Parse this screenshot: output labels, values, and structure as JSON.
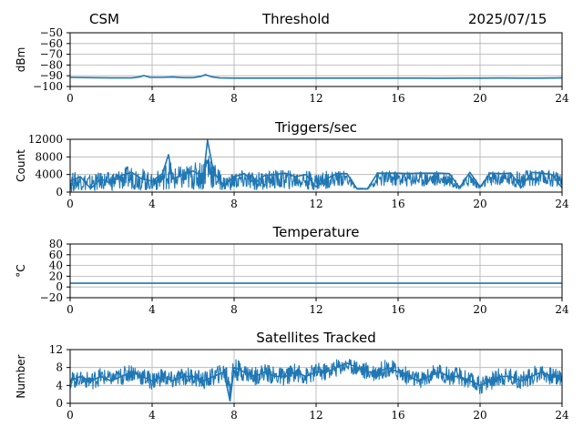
{
  "header": {
    "left": "CSM",
    "center": "Threshold",
    "right": "2025/07/15"
  },
  "colors": {
    "line": "#1f77b4",
    "grid": "#b0b0b0",
    "axis": "#000000"
  },
  "chart_data": [
    {
      "type": "line",
      "title": "",
      "ylabel": "dBm",
      "xlim": [
        0,
        24
      ],
      "ylim": [
        -100,
        -50
      ],
      "xticks": [
        0,
        4,
        8,
        12,
        16,
        20,
        24
      ],
      "yticks": [
        -100,
        -90,
        -80,
        -70,
        -60,
        -50
      ],
      "ytick_labels": [
        "−100",
        "−90",
        "−80",
        "−70",
        "−60",
        "−50"
      ],
      "grid": true,
      "x": [
        0,
        1,
        2,
        3,
        3.4,
        3.6,
        3.9,
        4.5,
        5,
        5.5,
        6,
        6.4,
        6.6,
        6.9,
        7.3,
        8,
        9,
        10,
        11,
        12,
        13,
        14,
        15,
        16,
        17,
        18,
        19,
        20,
        21,
        22,
        23,
        24
      ],
      "values": [
        -91.5,
        -91.8,
        -92.0,
        -92.0,
        -91.0,
        -89.8,
        -91.5,
        -91.5,
        -91.2,
        -91.8,
        -91.8,
        -90.5,
        -89.0,
        -91.0,
        -92.0,
        -92.2,
        -92.2,
        -92.2,
        -92.2,
        -92.2,
        -92.2,
        -92.2,
        -92.2,
        -92.2,
        -92.2,
        -92.3,
        -92.2,
        -92.2,
        -92.1,
        -92.2,
        -92.2,
        -92.0
      ]
    },
    {
      "type": "line",
      "title": "Triggers/sec",
      "ylabel": "Count",
      "xlim": [
        0,
        24
      ],
      "ylim": [
        0,
        12000
      ],
      "xticks": [
        0,
        4,
        8,
        12,
        16,
        20,
        24
      ],
      "yticks": [
        0,
        4000,
        8000,
        12000
      ],
      "ytick_labels": [
        "0",
        "4000",
        "8000",
        "12000"
      ],
      "grid": true,
      "x": [
        0,
        0.5,
        1,
        1.5,
        2,
        2.5,
        3,
        3.5,
        4,
        4.5,
        4.8,
        5,
        5.5,
        6,
        6.5,
        6.7,
        7,
        7.5,
        8,
        8.5,
        9,
        9.5,
        10,
        10.5,
        11,
        11.5,
        12,
        12.5,
        13,
        13.5,
        14,
        14.5,
        15,
        15.5,
        16,
        16.5,
        17,
        17.5,
        18,
        18.5,
        19,
        19.5,
        20,
        20.5,
        21,
        21.5,
        22,
        22.5,
        23,
        23.5,
        24
      ],
      "values": [
        2500,
        3500,
        800,
        3000,
        2000,
        3800,
        4500,
        3000,
        2500,
        4200,
        8500,
        3000,
        4000,
        4800,
        3500,
        11800,
        4500,
        1500,
        3500,
        4200,
        2000,
        3800,
        4000,
        4300,
        3500,
        4000,
        1200,
        3000,
        4200,
        4200,
        700,
        700,
        4300,
        4300,
        4300,
        4200,
        4300,
        4300,
        4300,
        4200,
        1000,
        4500,
        1200,
        4300,
        4200,
        4300,
        1000,
        4500,
        4300,
        4000,
        1000
      ],
      "range_low": [
        0,
        500,
        0,
        600,
        300,
        500,
        700,
        400,
        300,
        500,
        800,
        300,
        400,
        500,
        400,
        1000,
        600,
        400,
        500,
        600,
        400,
        600,
        700,
        700,
        700,
        700,
        400,
        800,
        1400,
        1400,
        700,
        700,
        1300,
        1300,
        1300,
        1300,
        1300,
        1300,
        1300,
        1300,
        700,
        1300,
        700,
        1300,
        1300,
        1300,
        700,
        1300,
        1300,
        1300,
        700
      ],
      "range_high": [
        4500,
        4500,
        4000,
        4500,
        4500,
        5500,
        6000,
        5500,
        4000,
        5500,
        8500,
        5500,
        6000,
        6500,
        7500,
        11800,
        7000,
        3500,
        4500,
        5000,
        4500,
        4800,
        5000,
        5000,
        4800,
        4800,
        4500,
        4800,
        4800,
        4800,
        900,
        900,
        4800,
        4800,
        4800,
        4800,
        4800,
        4800,
        4800,
        4800,
        1500,
        5000,
        1500,
        5000,
        4800,
        4800,
        4800,
        5000,
        5000,
        5000,
        4800
      ]
    },
    {
      "type": "line",
      "title": "Temperature",
      "ylabel": "°C",
      "xlim": [
        0,
        24
      ],
      "ylim": [
        -20,
        80
      ],
      "xticks": [
        0,
        4,
        8,
        12,
        16,
        20,
        24
      ],
      "yticks": [
        -20,
        0,
        20,
        40,
        60,
        80
      ],
      "ytick_labels": [
        "−20",
        "0",
        "20",
        "40",
        "60",
        "80"
      ],
      "grid": true,
      "x": [
        0,
        24
      ],
      "values": [
        7,
        7
      ]
    },
    {
      "type": "line",
      "title": "Satellites Tracked",
      "ylabel": "Number",
      "xlim": [
        0,
        24
      ],
      "ylim": [
        0,
        12
      ],
      "xticks": [
        0,
        4,
        8,
        12,
        16,
        20,
        24
      ],
      "yticks": [
        0,
        4,
        8,
        12
      ],
      "ytick_labels": [
        "0",
        "4",
        "8",
        "12"
      ],
      "grid": true,
      "x": [
        0,
        0.5,
        1,
        1.5,
        2,
        2.5,
        3,
        3.5,
        4,
        4.5,
        5,
        5.5,
        6,
        6.5,
        7,
        7.5,
        7.8,
        8,
        8.5,
        9,
        9.5,
        10,
        10.5,
        11,
        11.5,
        12,
        12.5,
        13,
        13.5,
        14,
        14.5,
        15,
        15.5,
        16,
        16.5,
        17,
        17.5,
        18,
        18.5,
        19,
        19.5,
        20,
        20.5,
        21,
        21.5,
        22,
        22.5,
        23,
        23.5,
        24
      ],
      "values": [
        5,
        6,
        5,
        6,
        5,
        6,
        7,
        6,
        5,
        6,
        5,
        6,
        6,
        5,
        6,
        7,
        0.5,
        8,
        7,
        6,
        7,
        6,
        6,
        7,
        6,
        7,
        7,
        8,
        9,
        8,
        7,
        7,
        8,
        7,
        6,
        5,
        6,
        7,
        6,
        6,
        5,
        4,
        5,
        6,
        6,
        5,
        6,
        7,
        6,
        6
      ],
      "range_low": [
        3,
        4,
        3,
        4,
        4,
        4,
        5,
        4,
        3,
        4,
        3,
        4,
        4,
        3,
        4,
        5,
        0,
        5,
        5,
        4,
        5,
        4,
        4,
        5,
        4,
        5,
        5,
        6,
        7,
        6,
        5,
        5,
        6,
        5,
        4,
        3,
        4,
        5,
        4,
        4,
        3,
        2,
        3,
        4,
        4,
        3,
        4,
        5,
        4,
        4
      ],
      "range_high": [
        7,
        7,
        7,
        8,
        7,
        8,
        9,
        8,
        7,
        8,
        7,
        8,
        8,
        7,
        8,
        9,
        10,
        10,
        9,
        8,
        9,
        8,
        8,
        9,
        8,
        9,
        9,
        10,
        10,
        10,
        9,
        9,
        10,
        9,
        8,
        7,
        8,
        9,
        8,
        8,
        7,
        6,
        7,
        8,
        8,
        7,
        8,
        9,
        8,
        8
      ]
    }
  ]
}
